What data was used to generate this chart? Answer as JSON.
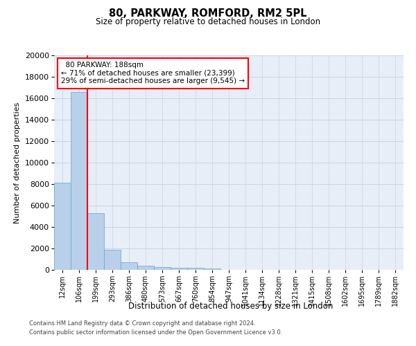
{
  "title": "80, PARKWAY, ROMFORD, RM2 5PL",
  "subtitle": "Size of property relative to detached houses in London",
  "xlabel": "Distribution of detached houses by size in London",
  "ylabel": "Number of detached properties",
  "bar_color": "#b8d0ea",
  "bar_edge_color": "#6aa0cc",
  "grid_color": "#c8d4e4",
  "background_color": "#e8eef8",
  "categories": [
    "12sqm",
    "106sqm",
    "199sqm",
    "293sqm",
    "386sqm",
    "480sqm",
    "573sqm",
    "667sqm",
    "760sqm",
    "854sqm",
    "947sqm",
    "1041sqm",
    "1134sqm",
    "1228sqm",
    "1321sqm",
    "1415sqm",
    "1508sqm",
    "1602sqm",
    "1695sqm",
    "1789sqm",
    "1882sqm"
  ],
  "values": [
    8100,
    16600,
    5300,
    1850,
    700,
    370,
    280,
    220,
    170,
    130,
    0,
    0,
    0,
    0,
    0,
    0,
    0,
    0,
    0,
    0,
    0
  ],
  "ylim": [
    0,
    20000
  ],
  "yticks": [
    0,
    2000,
    4000,
    6000,
    8000,
    10000,
    12000,
    14000,
    16000,
    18000,
    20000
  ],
  "property_label": "80 PARKWAY: 188sqm",
  "annotation_line1": "← 71% of detached houses are smaller (23,399)",
  "annotation_line2": "29% of semi-detached houses are larger (9,545) →",
  "vline_index": 2,
  "footer_line1": "Contains HM Land Registry data © Crown copyright and database right 2024.",
  "footer_line2": "Contains public sector information licensed under the Open Government Licence v3.0."
}
